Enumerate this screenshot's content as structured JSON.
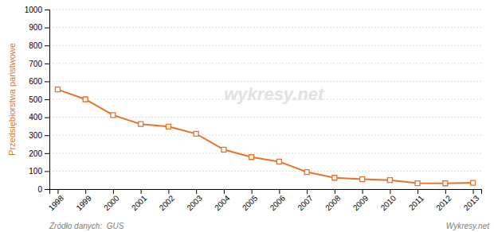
{
  "chart_data": {
    "type": "line",
    "x": [
      1998,
      1999,
      2000,
      2001,
      2002,
      2003,
      2004,
      2005,
      2006,
      2007,
      2008,
      2009,
      2010,
      2011,
      2012,
      2013
    ],
    "values": [
      555,
      500,
      412,
      362,
      348,
      308,
      220,
      178,
      153,
      95,
      63,
      55,
      50,
      33,
      32,
      35
    ],
    "color": "#e8722a",
    "marker": "square",
    "y_label": "Przedsiębiorstwa państwowe",
    "xlim": [
      1997.7,
      2013.3
    ],
    "xticks": [
      1998,
      1999,
      2000,
      2001,
      2002,
      2003,
      2004,
      2005,
      2006,
      2007,
      2008,
      2009,
      2010,
      2011,
      2012,
      2013
    ],
    "ylim": [
      0,
      1000
    ],
    "yticks": [
      0,
      100,
      200,
      300,
      400,
      500,
      600,
      700,
      800,
      900,
      1000
    ],
    "grid": true,
    "annotations": [
      "wykresy.net",
      "Źródło danych:  GUS",
      "Wykresy.net"
    ]
  }
}
